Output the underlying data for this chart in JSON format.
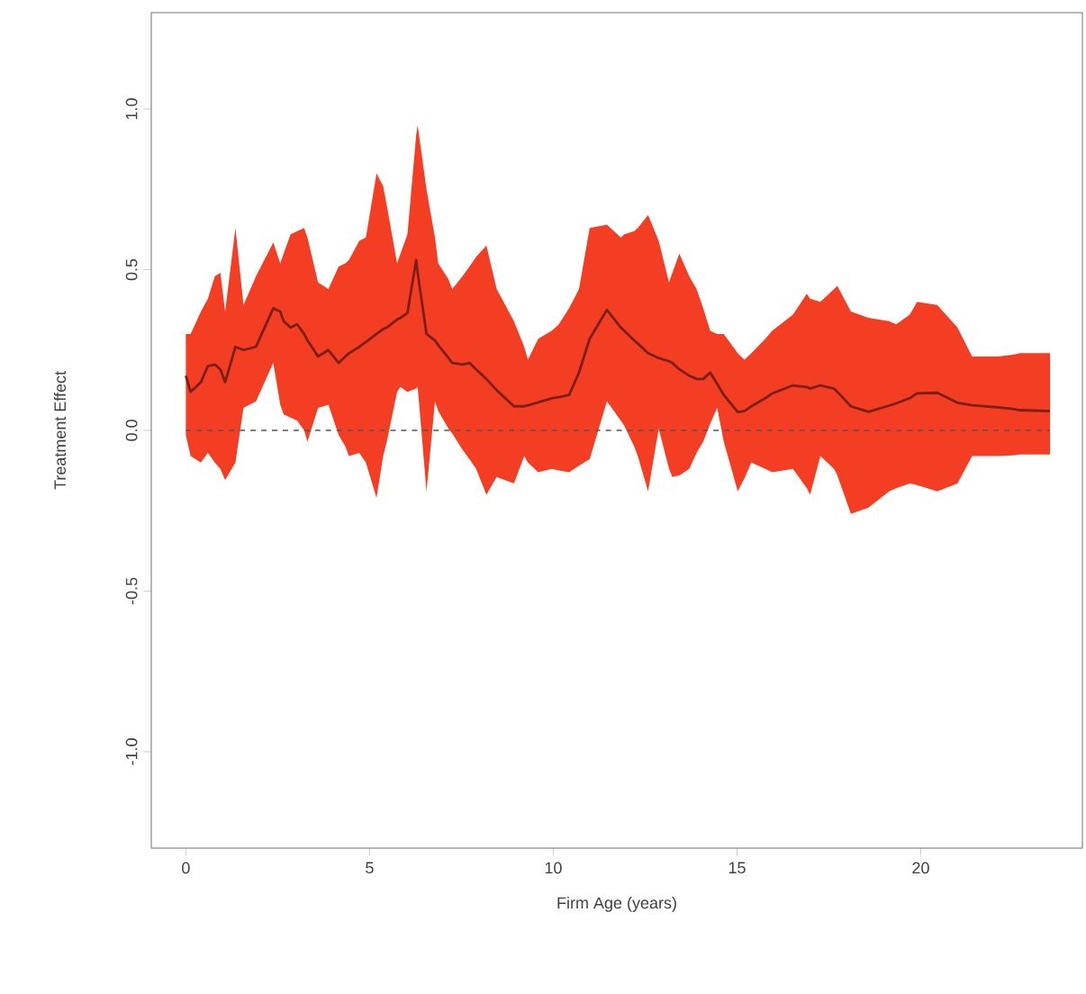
{
  "chart_data": {
    "type": "line",
    "xlabel": "Firm Age (years)",
    "ylabel": "Treatment Effect",
    "xlim": [
      -0.94,
      24.4
    ],
    "ylim": [
      -1.3,
      1.3
    ],
    "xticks": [
      0,
      5,
      10,
      15,
      20
    ],
    "yticks": [
      {
        "value": -1,
        "label": "-1.0"
      },
      -0.5,
      {
        "value": 0,
        "label": "0.0"
      },
      0.5,
      {
        "value": 1,
        "label": "1.0"
      }
    ],
    "grid": false,
    "marker": "none",
    "line_style": "solid",
    "ref_lines": [
      {
        "axis": "y",
        "value": 0,
        "color": "#555555",
        "line_style": "dashed"
      }
    ],
    "series": [
      {
        "color": "#7a1f12",
        "x": [
          0,
          0.13,
          0.41,
          0.6,
          0.79,
          0.94,
          1.07,
          1.35,
          1.57,
          1.91,
          2.38,
          2.57,
          2.66,
          2.85,
          3.03,
          3.22,
          3.31,
          3.6,
          3.88,
          4.16,
          4.34,
          4.44,
          4.72,
          4.9,
          5.19,
          5.37,
          5.47,
          5.75,
          5.84,
          6.03,
          6.27,
          6.31,
          6.55,
          6.78,
          6.87,
          7.15,
          7.25,
          7.53,
          7.72,
          7.9,
          8.18,
          8.46,
          8.93,
          9.21,
          9.31,
          9.59,
          9.96,
          10.15,
          10.43,
          10.7,
          10.99,
          11.46,
          11.84,
          11.93,
          12.2,
          12.3,
          12.58,
          12.87,
          13.15,
          13.24,
          13.43,
          13.7,
          13.9,
          14.08,
          14.27,
          14.46,
          14.64,
          15.02,
          15.2,
          15.39,
          15.77,
          15.96,
          16.52,
          16.9,
          16.99,
          17.27,
          17.64,
          17.73,
          18.1,
          18.58,
          19.14,
          19.33,
          19.7,
          19.9,
          20.45,
          21.0,
          21.4,
          22.1,
          22.5,
          22.7,
          23.52
        ],
        "values": [
          0.17,
          0.12,
          0.15,
          0.2,
          0.205,
          0.19,
          0.15,
          0.26,
          0.25,
          0.26,
          0.38,
          0.37,
          0.34,
          0.32,
          0.33,
          0.3,
          0.28,
          0.23,
          0.25,
          0.21,
          0.23,
          0.24,
          0.26,
          0.275,
          0.3,
          0.315,
          0.32,
          0.345,
          0.35,
          0.365,
          0.53,
          0.49,
          0.3,
          0.28,
          0.265,
          0.225,
          0.21,
          0.205,
          0.21,
          0.19,
          0.16,
          0.125,
          0.075,
          0.075,
          0.078,
          0.087,
          0.1,
          0.103,
          0.11,
          0.18,
          0.285,
          0.375,
          0.32,
          0.31,
          0.28,
          0.27,
          0.24,
          0.225,
          0.215,
          0.21,
          0.19,
          0.17,
          0.16,
          0.16,
          0.18,
          0.145,
          0.11,
          0.057,
          0.06,
          0.075,
          0.1,
          0.115,
          0.14,
          0.135,
          0.13,
          0.14,
          0.13,
          0.12,
          0.075,
          0.058,
          0.077,
          0.084,
          0.1,
          0.115,
          0.117,
          0.086,
          0.078,
          0.072,
          0.067,
          0.063,
          0.06
        ],
        "upper": [
          0.3,
          0.3,
          0.37,
          0.41,
          0.48,
          0.49,
          0.37,
          0.63,
          0.39,
          0.48,
          0.585,
          0.52,
          0.55,
          0.61,
          0.62,
          0.63,
          0.6,
          0.46,
          0.44,
          0.51,
          0.52,
          0.53,
          0.59,
          0.6,
          0.8,
          0.76,
          0.7,
          0.52,
          0.55,
          0.61,
          0.92,
          0.95,
          0.75,
          0.6,
          0.52,
          0.47,
          0.44,
          0.48,
          0.51,
          0.54,
          0.575,
          0.44,
          0.34,
          0.26,
          0.22,
          0.285,
          0.31,
          0.33,
          0.38,
          0.44,
          0.63,
          0.64,
          0.6,
          0.61,
          0.62,
          0.63,
          0.67,
          0.59,
          0.46,
          0.49,
          0.55,
          0.48,
          0.44,
          0.38,
          0.31,
          0.3,
          0.3,
          0.24,
          0.22,
          0.24,
          0.285,
          0.31,
          0.36,
          0.425,
          0.41,
          0.4,
          0.44,
          0.45,
          0.37,
          0.35,
          0.34,
          0.33,
          0.36,
          0.4,
          0.39,
          0.32,
          0.23,
          0.23,
          0.235,
          0.24,
          0.24
        ],
        "lower": [
          -0.015,
          -0.08,
          -0.1,
          -0.07,
          -0.1,
          -0.12,
          -0.155,
          -0.1,
          0.07,
          0.09,
          0.21,
          0.08,
          0.05,
          0.04,
          0.03,
          0.0,
          -0.035,
          0.07,
          0.08,
          -0.015,
          -0.05,
          -0.08,
          -0.07,
          -0.1,
          -0.21,
          -0.08,
          -0.035,
          0.12,
          0.135,
          0.12,
          0.13,
          0.135,
          -0.19,
          0.09,
          0.06,
          0.005,
          -0.01,
          -0.06,
          -0.09,
          -0.12,
          -0.2,
          -0.145,
          -0.165,
          -0.08,
          -0.1,
          -0.13,
          -0.12,
          -0.125,
          -0.13,
          -0.11,
          -0.09,
          0.09,
          0.03,
          0.015,
          -0.05,
          -0.08,
          -0.19,
          0.005,
          -0.12,
          -0.145,
          -0.14,
          -0.12,
          -0.07,
          -0.035,
          0.02,
          0.07,
          -0.035,
          -0.19,
          -0.15,
          -0.1,
          -0.12,
          -0.13,
          -0.12,
          -0.18,
          -0.2,
          -0.08,
          -0.12,
          -0.14,
          -0.26,
          -0.24,
          -0.19,
          -0.18,
          -0.165,
          -0.17,
          -0.19,
          -0.165,
          -0.08,
          -0.08,
          -0.078,
          -0.075,
          -0.075
        ]
      }
    ]
  }
}
